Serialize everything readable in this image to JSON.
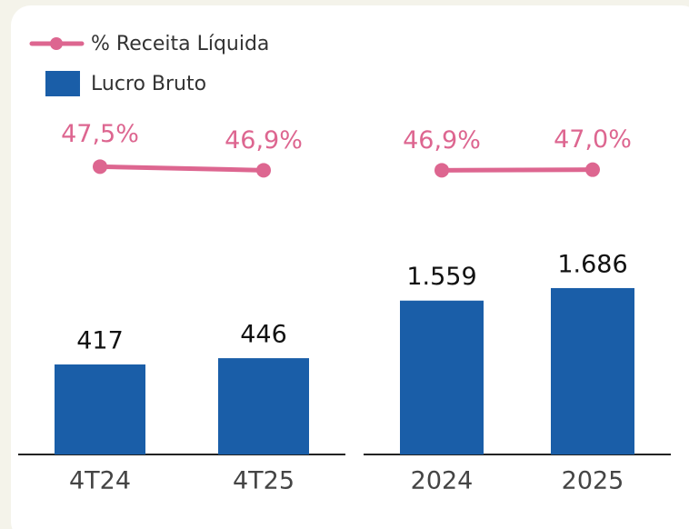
{
  "chart_data": [
    {
      "type": "bar",
      "categories": [
        "4T24",
        "4T25"
      ],
      "ylim": [
        0,
        1600
      ],
      "y2lim": [
        0,
        57
      ],
      "series": [
        {
          "name": "Lucro Bruto",
          "type": "bar",
          "color": "#1a5ea8",
          "values": [
            417,
            446
          ],
          "value_labels": [
            "417",
            "446"
          ]
        },
        {
          "name": "% Receita Líquida",
          "type": "line",
          "axis": "y2",
          "color": "#dd6690",
          "values": [
            47.5,
            46.9
          ],
          "value_labels": [
            "47,5%",
            "46,9%"
          ]
        }
      ]
    },
    {
      "type": "bar",
      "categories": [
        "2024",
        "2025"
      ],
      "ylim": [
        0,
        3500
      ],
      "y2lim": [
        0,
        57
      ],
      "series": [
        {
          "type": "bar",
          "color": "#1a5ea8",
          "values": [
            1559,
            1686
          ],
          "value_labels": [
            "1.559",
            "1.686"
          ]
        },
        {
          "type": "line",
          "axis": "y2",
          "color": "#dd6690",
          "values": [
            46.9,
            47.0
          ],
          "value_labels": [
            "46,9%",
            "47,0%"
          ]
        }
      ]
    }
  ]
}
